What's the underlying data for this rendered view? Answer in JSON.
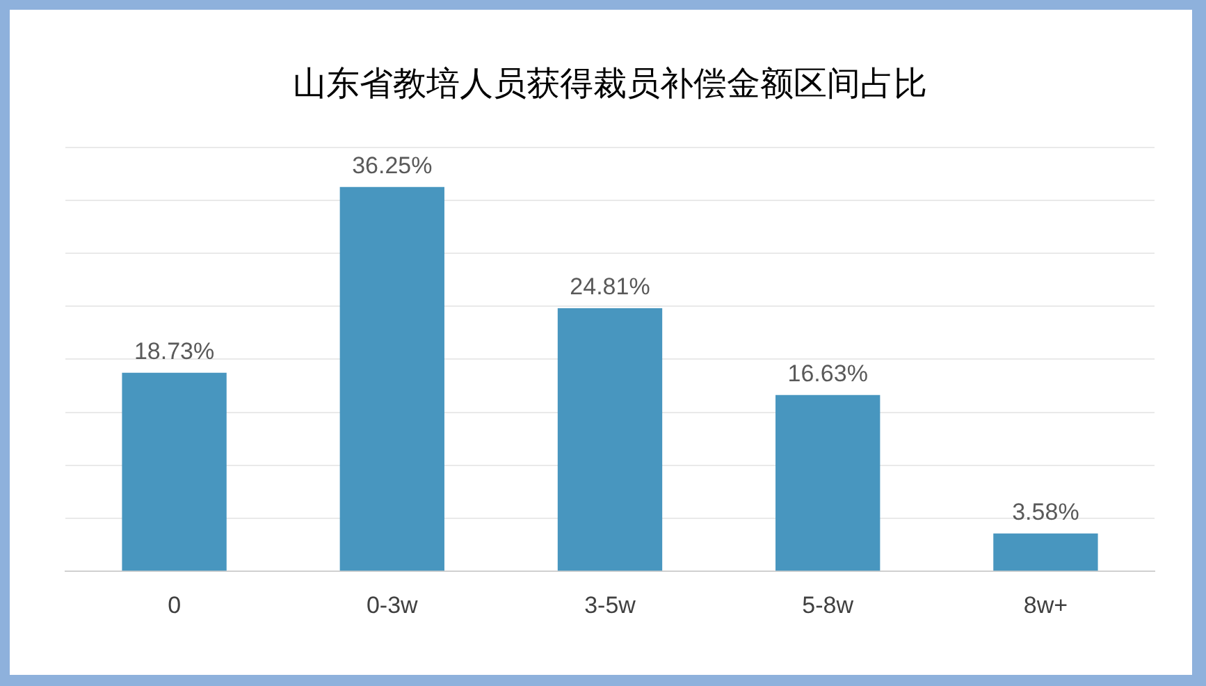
{
  "chart_data": {
    "type": "bar",
    "title": "山东省教培人员获得裁员补偿金额区间占比",
    "categories": [
      "0",
      "0-3w",
      "3-5w",
      "5-8w",
      "8w+"
    ],
    "values": [
      18.73,
      36.25,
      24.81,
      16.63,
      3.58
    ],
    "value_labels": [
      "18.73%",
      "36.25%",
      "24.81%",
      "16.63%",
      "3.58%"
    ],
    "color": "#4896bf",
    "ylim": [
      0,
      40
    ],
    "yticks": [
      {
        "value": 0,
        "label": null
      },
      {
        "value": 5,
        "label": null
      },
      {
        "value": 10,
        "label": null
      },
      {
        "value": 15,
        "label": null
      },
      {
        "value": 20,
        "label": null
      },
      {
        "value": 25,
        "label": null
      },
      {
        "value": 30,
        "label": null
      },
      {
        "value": 35,
        "label": null
      },
      {
        "value": 40,
        "label": null
      }
    ],
    "grid": "y",
    "tick_labels": "x"
  }
}
